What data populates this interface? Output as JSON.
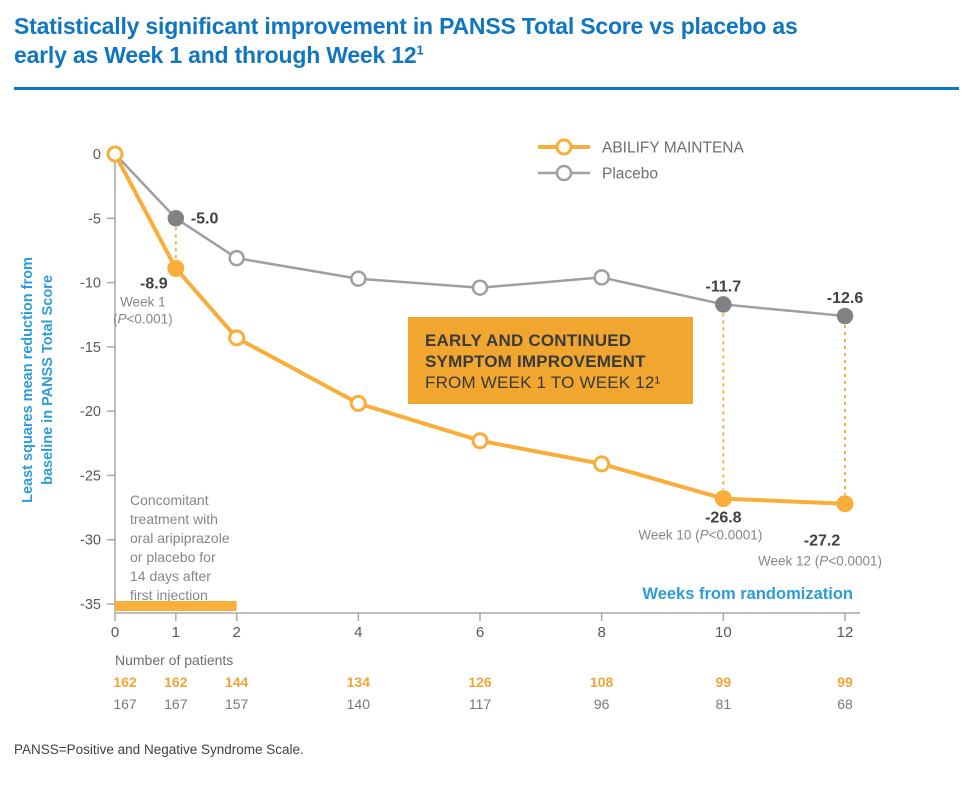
{
  "header": {
    "title_line1": "Statistically significant improvement in PANSS Total Score vs placebo as",
    "title_line2": "early as Week 1 and through Week 12",
    "title_sup": "1"
  },
  "footer": {
    "note": "PANSS=Positive and Negative Syndrome Scale."
  },
  "colors": {
    "title_blue": "#1176C0",
    "axis_blue": "#2D9CD8",
    "abilify_yellow": "#F9AE3B",
    "treatment_bar_yellow": "#FBB03B",
    "placebo_gray": "#9D9FA2",
    "marker_gray_fill": "#808285",
    "axis_gray": "#A7A9AC",
    "dark_text": "#414042",
    "gray_text": "#848689",
    "tick_text": "#58595B",
    "legend_text": "#6D6E71",
    "callout_bg": "#F0A62F",
    "patients_yellow": "#F0A43C",
    "patients_gray": "#77787B"
  },
  "chart_data": {
    "type": "line",
    "x": [
      0,
      1,
      2,
      4,
      6,
      8,
      10,
      12
    ],
    "xlabel": "Weeks from randomization",
    "ylabel_lines": [
      "Least squares mean reduction from",
      "baseline in PANSS Total Score"
    ],
    "ylim": [
      -35,
      0
    ],
    "yticks": [
      0,
      -5,
      -10,
      -15,
      -20,
      -25,
      -30,
      -35
    ],
    "grid": false,
    "legend_position": "top-right",
    "series": [
      {
        "name": "ABILIFY MAINTENA",
        "key": "abilify",
        "values": [
          0,
          -8.9,
          -14.3,
          -19.4,
          -22.3,
          -24.1,
          -26.8,
          -27.2
        ],
        "filled_marker_weeks": [
          1,
          10,
          12
        ]
      },
      {
        "name": "Placebo",
        "key": "placebo",
        "values": [
          0,
          -5.0,
          -8.1,
          -9.7,
          -10.4,
          -9.6,
          -11.7,
          -12.6
        ],
        "filled_marker_weeks": [
          1,
          10,
          12
        ]
      }
    ],
    "connector_weeks": [
      1,
      10,
      12
    ],
    "treatment_bar": {
      "from_week": 0,
      "to_week": 2
    },
    "point_labels": [
      {
        "series": "placebo",
        "week": 1,
        "value": "-5.0",
        "side": "right"
      },
      {
        "series": "abilify",
        "week": 1,
        "value": "-8.9",
        "notes": [
          "Week 1",
          "(P<0.001)"
        ],
        "side": "below-left"
      },
      {
        "series": "placebo",
        "week": 10,
        "value": "-11.7",
        "side": "above"
      },
      {
        "series": "placebo",
        "week": 12,
        "value": "-12.6",
        "side": "above"
      },
      {
        "series": "abilify",
        "week": 10,
        "value": "-26.8",
        "notes": [
          "Week 10 (P<0.0001)"
        ],
        "side": "below"
      },
      {
        "series": "abilify",
        "week": 12,
        "value": "-27.2",
        "notes": [
          "Week 12 (P<0.0001)"
        ],
        "side": "below-right"
      }
    ],
    "callout": {
      "lines": [
        "EARLY AND CONTINUED",
        "SYMPTOM IMPROVEMENT",
        "FROM WEEK 1 TO WEEK 12¹"
      ],
      "bold_lines": 2
    },
    "note_lines": [
      "Concomitant",
      "treatment with",
      "oral aripiprazole",
      "or placebo for",
      "14 days after",
      "first injection"
    ],
    "patients": {
      "label": "Number of patients",
      "rows": [
        {
          "key": "abilify",
          "values": [
            162,
            162,
            144,
            134,
            126,
            108,
            99,
            99
          ]
        },
        {
          "key": "placebo",
          "values": [
            167,
            167,
            157,
            140,
            117,
            96,
            81,
            68
          ]
        }
      ]
    }
  }
}
